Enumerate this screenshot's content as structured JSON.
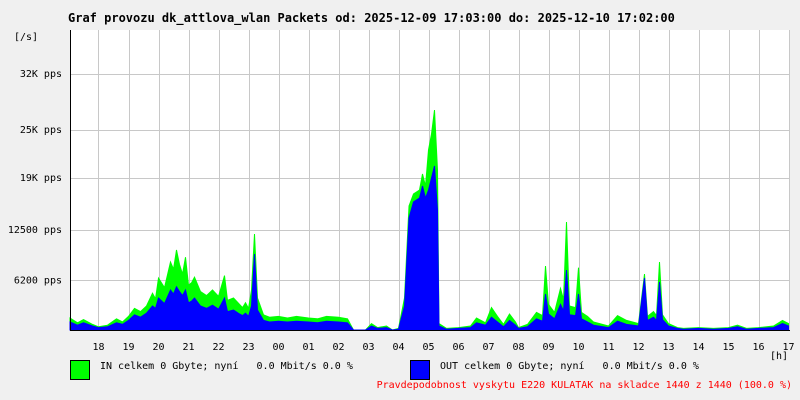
{
  "chart_data": {
    "type": "area",
    "title": "Graf provozu dk_attlova_wlan Packets od: 2025-12-09 17:03:00 do: 2025-12-10 17:02:00",
    "ylabel": "[/s]",
    "xlabel": "[h]",
    "ylim": [
      0,
      37500
    ],
    "xlim": [
      17.05,
      41.05
    ],
    "y_ticks": [
      6200,
      12500,
      19000,
      25000,
      32000
    ],
    "y_tick_labels": [
      "6200 pps",
      "12500 pps",
      "19K pps",
      "25K pps",
      "32K pps"
    ],
    "x_ticks": [
      18,
      19,
      20,
      21,
      22,
      23,
      24,
      25,
      26,
      27,
      28,
      29,
      30,
      31,
      32,
      33,
      34,
      35,
      36,
      37,
      38,
      39,
      40,
      41
    ],
    "x_tick_labels": [
      "18",
      "19",
      "20",
      "21",
      "22",
      "23",
      "00",
      "01",
      "02",
      "03",
      "04",
      "05",
      "06",
      "07",
      "08",
      "09",
      "10",
      "11",
      "12",
      "13",
      "14",
      "15",
      "16",
      "17"
    ],
    "grid": true,
    "series": [
      {
        "name": "IN",
        "color": "#00ff00",
        "points": [
          [
            17.05,
            1500
          ],
          [
            17.3,
            900
          ],
          [
            17.5,
            1300
          ],
          [
            17.8,
            700
          ],
          [
            18.0,
            400
          ],
          [
            18.3,
            600
          ],
          [
            18.6,
            1400
          ],
          [
            18.8,
            1000
          ],
          [
            19.0,
            1700
          ],
          [
            19.2,
            2700
          ],
          [
            19.4,
            2300
          ],
          [
            19.6,
            3000
          ],
          [
            19.8,
            4600
          ],
          [
            19.9,
            3900
          ],
          [
            20.0,
            6500
          ],
          [
            20.2,
            5300
          ],
          [
            20.4,
            8500
          ],
          [
            20.5,
            7600
          ],
          [
            20.6,
            10000
          ],
          [
            20.7,
            8200
          ],
          [
            20.8,
            7000
          ],
          [
            20.9,
            9100
          ],
          [
            21.0,
            5600
          ],
          [
            21.1,
            5900
          ],
          [
            21.2,
            6600
          ],
          [
            21.4,
            4800
          ],
          [
            21.6,
            4300
          ],
          [
            21.8,
            5000
          ],
          [
            22.0,
            4200
          ],
          [
            22.2,
            6800
          ],
          [
            22.3,
            3700
          ],
          [
            22.5,
            4000
          ],
          [
            22.7,
            3200
          ],
          [
            22.8,
            2800
          ],
          [
            22.9,
            3400
          ],
          [
            23.0,
            2700
          ],
          [
            23.1,
            5000
          ],
          [
            23.2,
            12000
          ],
          [
            23.3,
            4000
          ],
          [
            23.5,
            1900
          ],
          [
            23.7,
            1600
          ],
          [
            24.0,
            1700
          ],
          [
            24.3,
            1500
          ],
          [
            24.6,
            1700
          ],
          [
            25.0,
            1500
          ],
          [
            25.3,
            1400
          ],
          [
            25.6,
            1700
          ],
          [
            26.0,
            1600
          ],
          [
            26.3,
            1400
          ],
          [
            26.5,
            0
          ],
          [
            26.9,
            0
          ],
          [
            27.1,
            800
          ],
          [
            27.3,
            300
          ],
          [
            27.6,
            500
          ],
          [
            27.8,
            0
          ],
          [
            28.0,
            200
          ],
          [
            28.2,
            4000
          ],
          [
            28.35,
            15500
          ],
          [
            28.5,
            17000
          ],
          [
            28.7,
            17500
          ],
          [
            28.8,
            19500
          ],
          [
            28.9,
            18000
          ],
          [
            29.0,
            22500
          ],
          [
            29.1,
            24500
          ],
          [
            29.2,
            27500
          ],
          [
            29.3,
            20000
          ],
          [
            29.35,
            800
          ],
          [
            29.6,
            200
          ],
          [
            30.0,
            300
          ],
          [
            30.4,
            500
          ],
          [
            30.6,
            1500
          ],
          [
            30.9,
            900
          ],
          [
            31.1,
            2800
          ],
          [
            31.3,
            1700
          ],
          [
            31.5,
            700
          ],
          [
            31.7,
            2000
          ],
          [
            31.9,
            1000
          ],
          [
            32.0,
            300
          ],
          [
            32.3,
            700
          ],
          [
            32.6,
            2200
          ],
          [
            32.8,
            1800
          ],
          [
            32.9,
            8000
          ],
          [
            33.0,
            3200
          ],
          [
            33.2,
            2200
          ],
          [
            33.4,
            5200
          ],
          [
            33.5,
            3800
          ],
          [
            33.6,
            13500
          ],
          [
            33.7,
            3000
          ],
          [
            33.9,
            2800
          ],
          [
            34.0,
            7800
          ],
          [
            34.1,
            2200
          ],
          [
            34.3,
            1700
          ],
          [
            34.5,
            1000
          ],
          [
            35.0,
            500
          ],
          [
            35.3,
            1800
          ],
          [
            35.6,
            1200
          ],
          [
            36.0,
            800
          ],
          [
            36.2,
            7000
          ],
          [
            36.3,
            1700
          ],
          [
            36.5,
            2300
          ],
          [
            36.6,
            1800
          ],
          [
            36.7,
            8500
          ],
          [
            36.8,
            1900
          ],
          [
            37.0,
            800
          ],
          [
            37.3,
            300
          ],
          [
            37.5,
            200
          ],
          [
            38.0,
            300
          ],
          [
            38.5,
            200
          ],
          [
            39.0,
            300
          ],
          [
            39.3,
            600
          ],
          [
            39.6,
            200
          ],
          [
            40.0,
            300
          ],
          [
            40.5,
            500
          ],
          [
            40.8,
            1200
          ],
          [
            41.0,
            800
          ]
        ]
      },
      {
        "name": "OUT",
        "color": "#0000ff",
        "points": [
          [
            17.05,
            1000
          ],
          [
            17.3,
            600
          ],
          [
            17.5,
            900
          ],
          [
            17.8,
            500
          ],
          [
            18.0,
            300
          ],
          [
            18.3,
            400
          ],
          [
            18.6,
            900
          ],
          [
            18.8,
            700
          ],
          [
            19.0,
            1200
          ],
          [
            19.2,
            1900
          ],
          [
            19.4,
            1600
          ],
          [
            19.6,
            2100
          ],
          [
            19.8,
            3000
          ],
          [
            19.9,
            2700
          ],
          [
            20.0,
            4000
          ],
          [
            20.2,
            3300
          ],
          [
            20.4,
            5000
          ],
          [
            20.5,
            4500
          ],
          [
            20.6,
            5400
          ],
          [
            20.7,
            4800
          ],
          [
            20.8,
            4300
          ],
          [
            20.9,
            5000
          ],
          [
            21.0,
            3400
          ],
          [
            21.1,
            3600
          ],
          [
            21.2,
            4000
          ],
          [
            21.4,
            3000
          ],
          [
            21.6,
            2700
          ],
          [
            21.8,
            3100
          ],
          [
            22.0,
            2600
          ],
          [
            22.2,
            4000
          ],
          [
            22.3,
            2300
          ],
          [
            22.5,
            2500
          ],
          [
            22.7,
            2000
          ],
          [
            22.8,
            1800
          ],
          [
            22.9,
            2100
          ],
          [
            23.0,
            1700
          ],
          [
            23.1,
            3000
          ],
          [
            23.2,
            9500
          ],
          [
            23.3,
            2500
          ],
          [
            23.5,
            1200
          ],
          [
            23.7,
            1000
          ],
          [
            24.0,
            1100
          ],
          [
            24.3,
            1000
          ],
          [
            24.6,
            1100
          ],
          [
            25.0,
            1000
          ],
          [
            25.3,
            900
          ],
          [
            25.6,
            1100
          ],
          [
            26.0,
            1000
          ],
          [
            26.3,
            900
          ],
          [
            26.5,
            0
          ],
          [
            26.9,
            0
          ],
          [
            27.1,
            500
          ],
          [
            27.3,
            200
          ],
          [
            27.6,
            300
          ],
          [
            27.8,
            0
          ],
          [
            28.0,
            100
          ],
          [
            28.2,
            3000
          ],
          [
            28.35,
            14000
          ],
          [
            28.5,
            16000
          ],
          [
            28.7,
            16500
          ],
          [
            28.8,
            18000
          ],
          [
            28.9,
            16500
          ],
          [
            29.0,
            17500
          ],
          [
            29.1,
            19000
          ],
          [
            29.2,
            20500
          ],
          [
            29.3,
            15000
          ],
          [
            29.35,
            500
          ],
          [
            29.6,
            100
          ],
          [
            30.0,
            200
          ],
          [
            30.4,
            300
          ],
          [
            30.6,
            900
          ],
          [
            30.9,
            600
          ],
          [
            31.1,
            1600
          ],
          [
            31.3,
            1000
          ],
          [
            31.5,
            400
          ],
          [
            31.7,
            1200
          ],
          [
            31.9,
            600
          ],
          [
            32.0,
            200
          ],
          [
            32.3,
            400
          ],
          [
            32.6,
            1400
          ],
          [
            32.8,
            1100
          ],
          [
            32.9,
            4500
          ],
          [
            33.0,
            2000
          ],
          [
            33.2,
            1400
          ],
          [
            33.4,
            3200
          ],
          [
            33.5,
            2400
          ],
          [
            33.6,
            7500
          ],
          [
            33.7,
            1900
          ],
          [
            33.9,
            1800
          ],
          [
            34.0,
            4500
          ],
          [
            34.1,
            1400
          ],
          [
            34.3,
            1000
          ],
          [
            34.5,
            600
          ],
          [
            35.0,
            300
          ],
          [
            35.3,
            1100
          ],
          [
            35.6,
            700
          ],
          [
            36.0,
            500
          ],
          [
            36.2,
            6500
          ],
          [
            36.3,
            1200
          ],
          [
            36.5,
            1600
          ],
          [
            36.6,
            1200
          ],
          [
            36.7,
            6000
          ],
          [
            36.8,
            1300
          ],
          [
            37.0,
            500
          ],
          [
            37.3,
            200
          ],
          [
            37.5,
            100
          ],
          [
            38.0,
            200
          ],
          [
            38.5,
            100
          ],
          [
            39.0,
            200
          ],
          [
            39.3,
            400
          ],
          [
            39.6,
            100
          ],
          [
            40.0,
            200
          ],
          [
            40.5,
            300
          ],
          [
            40.8,
            800
          ],
          [
            41.0,
            500
          ]
        ]
      }
    ]
  },
  "legend": {
    "in": {
      "color": "#00ff00",
      "text": "IN celkem 0 Gbyte; nyní   0.0 Mbit/s 0.0 %"
    },
    "out": {
      "color": "#0000ff",
      "text": "OUT celkem 0 Gbyte; nyní   0.0 Mbit/s 0.0 %"
    }
  },
  "footer": {
    "note": "Pravdepodobnost vyskytu E220 KULATAK na skladce 1440 z 1440 (100.0 %)"
  }
}
